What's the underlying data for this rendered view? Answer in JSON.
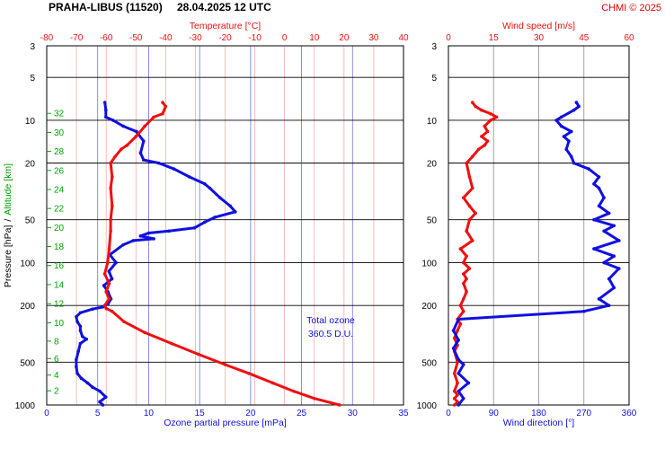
{
  "header": {
    "station": "PRAHA-LIBUS (11520)",
    "datetime": "28.04.2025 12 UTC",
    "credit": "CHMI © 2025"
  },
  "colors": {
    "ozone": "#1010e0",
    "temperature": "#ee1010",
    "wind_speed": "#ee1010",
    "wind_direction": "#1010e0",
    "altitude": "#00a000",
    "grid_blue": "#7070ee",
    "grid_red": "#f0a0a0"
  },
  "chart_data": [
    {
      "type": "line",
      "title": "",
      "ylabel": "Pressure [hPa]",
      "ylabel2": "Altitude [km]",
      "ylabel_separator": "/",
      "y_scale": "log",
      "ylim": [
        1000,
        3
      ],
      "pressure_ticks": [
        3,
        5,
        10,
        20,
        50,
        100,
        200,
        500,
        1000
      ],
      "altitude_ticks": [
        2,
        4,
        6,
        8,
        10,
        12,
        14,
        16,
        18,
        20,
        22,
        24,
        26,
        28,
        30,
        32
      ],
      "xlabel_bottom": "Ozone partial pressure [mPa]",
      "x_bottom_range": [
        0,
        35
      ],
      "x_bottom_ticks": [
        0,
        5,
        10,
        15,
        20,
        25,
        30,
        35
      ],
      "xlabel_top": "Temperature [°C]",
      "x_top_range": [
        -80,
        40
      ],
      "x_top_ticks": [
        -80,
        -70,
        -60,
        -50,
        -40,
        -30,
        -20,
        -10,
        0,
        10,
        20,
        30,
        40
      ],
      "annotation": [
        "Total ozone",
        "360.5 D.U."
      ],
      "series": [
        {
          "axis": "bottom",
          "points": [
            [
              5.5,
              1000
            ],
            [
              5.2,
              950
            ],
            [
              5.8,
              880
            ],
            [
              5.2,
              800
            ],
            [
              4.5,
              750
            ],
            [
              4.0,
              700
            ],
            [
              3.4,
              650
            ],
            [
              3.0,
              600
            ],
            [
              2.9,
              540
            ],
            [
              2.9,
              480
            ],
            [
              3.1,
              420
            ],
            [
              3.3,
              370
            ],
            [
              3.9,
              345
            ],
            [
              3.5,
              330
            ],
            [
              3.3,
              300
            ],
            [
              3.3,
              280
            ],
            [
              3.0,
              260
            ],
            [
              2.9,
              240
            ],
            [
              3.3,
              225
            ],
            [
              4.5,
              212
            ],
            [
              5.5,
              205
            ],
            [
              6.0,
              195
            ],
            [
              6.3,
              180
            ],
            [
              6.0,
              160
            ],
            [
              5.6,
              145
            ],
            [
              6.4,
              130
            ],
            [
              6.1,
              115
            ],
            [
              6.8,
              100
            ],
            [
              6.2,
              88
            ],
            [
              7.5,
              75
            ],
            [
              8.5,
              70
            ],
            [
              10.5,
              68
            ],
            [
              9.2,
              65
            ],
            [
              10.0,
              62
            ],
            [
              12.0,
              60
            ],
            [
              14.5,
              57
            ],
            [
              15.5,
              52
            ],
            [
              16.5,
              48
            ],
            [
              18.5,
              44
            ],
            [
              18.0,
              40
            ],
            [
              17.0,
              35
            ],
            [
              16.0,
              30
            ],
            [
              15.5,
              28
            ],
            [
              14.0,
              25
            ],
            [
              12.5,
              22
            ],
            [
              11.0,
              20
            ],
            [
              9.5,
              19
            ],
            [
              9.2,
              17
            ],
            [
              9.5,
              14
            ],
            [
              8.8,
              12
            ],
            [
              7.5,
              11
            ],
            [
              6.5,
              10
            ],
            [
              5.8,
              9.5
            ],
            [
              5.8,
              8.5
            ],
            [
              5.7,
              7.5
            ]
          ]
        },
        {
          "axis": "top",
          "points": [
            [
              18.5,
              1000
            ],
            [
              10.0,
              900
            ],
            [
              3.0,
              800
            ],
            [
              -4.0,
              700
            ],
            [
              -12.0,
              600
            ],
            [
              -20.0,
              520
            ],
            [
              -29.0,
              440
            ],
            [
              -38.0,
              370
            ],
            [
              -47.0,
              310
            ],
            [
              -54.0,
              260
            ],
            [
              -58.0,
              220
            ],
            [
              -60.0,
              210
            ],
            [
              -60.5,
              200
            ],
            [
              -59.0,
              180
            ],
            [
              -60.0,
              160
            ],
            [
              -59.0,
              140
            ],
            [
              -60.5,
              120
            ],
            [
              -59.5,
              100
            ],
            [
              -59.0,
              80
            ],
            [
              -58.5,
              60
            ],
            [
              -58.5,
              50
            ],
            [
              -58.0,
              40
            ],
            [
              -58.5,
              30
            ],
            [
              -58.0,
              25
            ],
            [
              -58.5,
              20
            ],
            [
              -57.0,
              18
            ],
            [
              -55.0,
              16
            ],
            [
              -53.0,
              15
            ],
            [
              -50.0,
              13
            ],
            [
              -47.0,
              11
            ],
            [
              -44.0,
              9.5
            ],
            [
              -41.0,
              9.0
            ],
            [
              -40.0,
              8.0
            ],
            [
              -41.0,
              7.5
            ]
          ]
        }
      ]
    },
    {
      "type": "line",
      "title": "",
      "y_scale": "log",
      "ylim": [
        1000,
        3
      ],
      "pressure_ticks": [
        3,
        5,
        10,
        20,
        50,
        100,
        200,
        500,
        1000
      ],
      "xlabel_bottom": "Wind direction [°]",
      "x_bottom_range": [
        0,
        360
      ],
      "x_bottom_ticks": [
        0,
        90,
        180,
        270,
        360
      ],
      "xlabel_top": "Wind speed [m/s]",
      "x_top_range": [
        0,
        60
      ],
      "x_top_ticks": [
        0,
        15,
        30,
        45,
        60
      ],
      "series": [
        {
          "axis": "top",
          "points": [
            [
              2,
              1000
            ],
            [
              3,
              950
            ],
            [
              2,
              900
            ],
            [
              3,
              850
            ],
            [
              2,
              800
            ],
            [
              3,
              700
            ],
            [
              2,
              600
            ],
            [
              3,
              500
            ],
            [
              2,
              420
            ],
            [
              3,
              380
            ],
            [
              2,
              340
            ],
            [
              3,
              300
            ],
            [
              4,
              270
            ],
            [
              3,
              250
            ],
            [
              5,
              220
            ],
            [
              4,
              200
            ],
            [
              5,
              180
            ],
            [
              6,
              160
            ],
            [
              5,
              140
            ],
            [
              6,
              130
            ],
            [
              5,
              120
            ],
            [
              7,
              110
            ],
            [
              5,
              100
            ],
            [
              6,
              90
            ],
            [
              4,
              80
            ],
            [
              8,
              70
            ],
            [
              6,
              60
            ],
            [
              7,
              50
            ],
            [
              9,
              45
            ],
            [
              7,
              40
            ],
            [
              5,
              35
            ],
            [
              8,
              30
            ],
            [
              7,
              25
            ],
            [
              6,
              20
            ],
            [
              8,
              18
            ],
            [
              10,
              16
            ],
            [
              12,
              15
            ],
            [
              13,
              14
            ],
            [
              11,
              13
            ],
            [
              13,
              12
            ],
            [
              12,
              11
            ],
            [
              14,
              10
            ],
            [
              16,
              9.5
            ],
            [
              14,
              9.0
            ],
            [
              11,
              8.5
            ],
            [
              9,
              8.0
            ],
            [
              8,
              7.5
            ]
          ]
        },
        {
          "axis": "bottom",
          "points": [
            [
              20,
              1000
            ],
            [
              30,
              900
            ],
            [
              20,
              800
            ],
            [
              40,
              700
            ],
            [
              20,
              600
            ],
            [
              30,
              520
            ],
            [
              20,
              480
            ],
            [
              10,
              400
            ],
            [
              20,
              350
            ],
            [
              10,
              300
            ],
            [
              20,
              250
            ],
            [
              270,
              220
            ],
            [
              320,
              200
            ],
            [
              300,
              180
            ],
            [
              330,
              150
            ],
            [
              320,
              130
            ],
            [
              340,
              110
            ],
            [
              310,
              100
            ],
            [
              330,
              90
            ],
            [
              290,
              80
            ],
            [
              340,
              70
            ],
            [
              310,
              60
            ],
            [
              330,
              55
            ],
            [
              290,
              50
            ],
            [
              320,
              45
            ],
            [
              300,
              40
            ],
            [
              310,
              35
            ],
            [
              300,
              30
            ],
            [
              290,
              28
            ],
            [
              300,
              25
            ],
            [
              280,
              22
            ],
            [
              250,
              20
            ],
            [
              245,
              18
            ],
            [
              235,
              16
            ],
            [
              240,
              14
            ],
            [
              230,
              13
            ],
            [
              245,
              12
            ],
            [
              225,
              11
            ],
            [
              215,
              10
            ],
            [
              225,
              9.5
            ],
            [
              250,
              8.5
            ],
            [
              260,
              8.0
            ],
            [
              255,
              7.5
            ]
          ]
        }
      ]
    }
  ]
}
